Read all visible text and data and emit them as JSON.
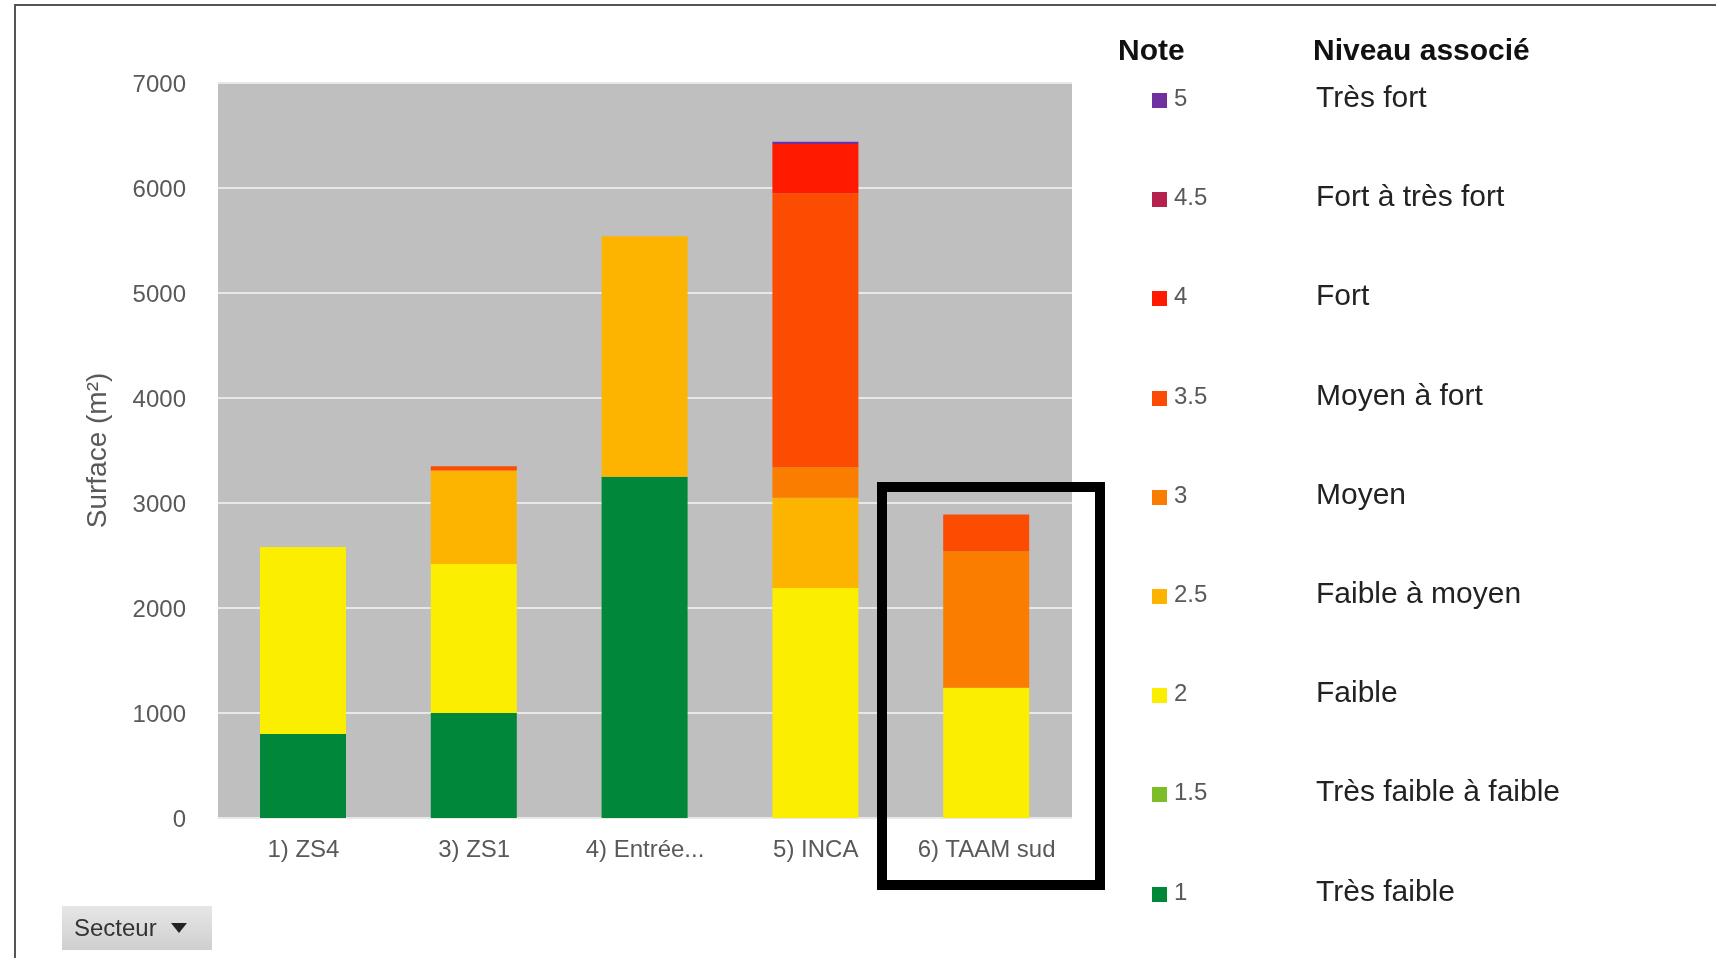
{
  "chart_data": {
    "type": "bar",
    "stacked": true,
    "ylabel": "Surface (m²)",
    "legend_title": "Note",
    "categories": [
      "1) ZS4",
      "3) ZS1",
      "4) Entrée...",
      "5) INCA",
      "6) TAAM sud"
    ],
    "series": [
      {
        "name": "1",
        "color": "#00873a",
        "values": [
          800,
          1000,
          3250,
          0,
          0
        ]
      },
      {
        "name": "1.5",
        "color": "#7cbd2a",
        "values": [
          0,
          0,
          0,
          0,
          0
        ]
      },
      {
        "name": "2",
        "color": "#fcee00",
        "values": [
          1780,
          1420,
          0,
          2190,
          1240
        ]
      },
      {
        "name": "2.5",
        "color": "#fcb400",
        "values": [
          0,
          890,
          2290,
          860,
          0
        ]
      },
      {
        "name": "3",
        "color": "#fa7d00",
        "values": [
          0,
          0,
          0,
          290,
          1300
        ]
      },
      {
        "name": "3.5",
        "color": "#fc4c02",
        "values": [
          0,
          40,
          0,
          2610,
          350
        ]
      },
      {
        "name": "4",
        "color": "#ff1a00",
        "values": [
          0,
          0,
          0,
          470,
          0
        ]
      },
      {
        "name": "4.5",
        "color": "#b5214f",
        "values": [
          0,
          0,
          0,
          0,
          0
        ]
      },
      {
        "name": "5",
        "color": "#7030a0",
        "values": [
          0,
          0,
          0,
          20,
          0
        ]
      }
    ],
    "ylim": [
      0,
      7000
    ],
    "yticks": [
      0,
      1000,
      2000,
      3000,
      4000,
      5000,
      6000,
      7000
    ],
    "grid": "y",
    "legend": "right",
    "annotations": [
      "Niveau associé",
      "Très fort",
      "Fort à très fort",
      "Fort",
      "Moyen à fort",
      "Moyen",
      "Faible à moyen",
      "Faible",
      "Très faible à faible",
      "Très faible",
      "Secteur"
    ]
  }
}
